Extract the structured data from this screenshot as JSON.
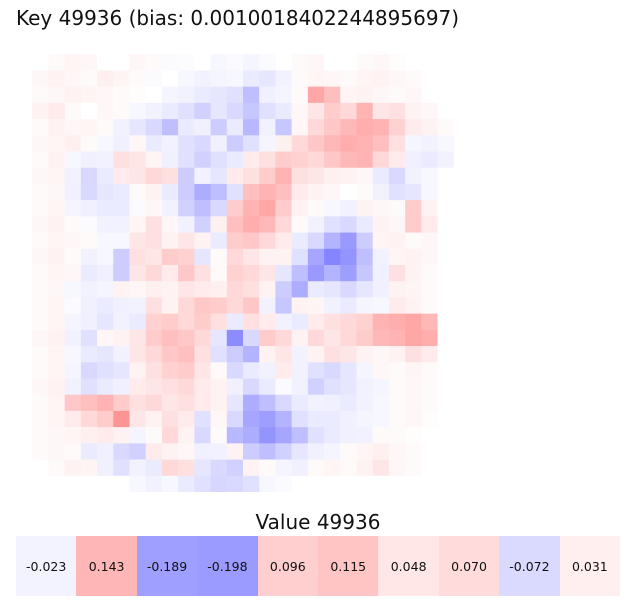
{
  "key_title": "Key 49936 (bias: 0.0010018402244895697)",
  "value_title": "Value 49936",
  "chart_data": [
    {
      "type": "heatmap",
      "title": "Key 49936 (bias: 0.0010018402244895697)",
      "colormap": "bwr",
      "color_low": "#0000ff",
      "color_mid": "#ffffff",
      "color_high": "#ff0000",
      "vmin": -1,
      "vmax": 1,
      "rows": 28,
      "cols": 28,
      "grid": false,
      "axes": "off",
      "values": [
        [
          0,
          0,
          0,
          0,
          0,
          0,
          0,
          0,
          0,
          0,
          0,
          0,
          0,
          0,
          0,
          0,
          0,
          0,
          0,
          0,
          0,
          0,
          0,
          0,
          0,
          0,
          0,
          0
        ],
        [
          0,
          0,
          0.02,
          0.04,
          0.03,
          0,
          0,
          0.03,
          0.02,
          -0.02,
          -0.01,
          0,
          -0.03,
          -0.02,
          -0.04,
          -0.02,
          0,
          0.02,
          0.03,
          0,
          0,
          0.02,
          0.03,
          0.01,
          0,
          0,
          0,
          0
        ],
        [
          0,
          0.03,
          0.05,
          0.03,
          0.02,
          0.06,
          0.04,
          0.02,
          -0.02,
          0,
          -0.03,
          -0.05,
          -0.04,
          -0.03,
          -0.08,
          -0.1,
          -0.05,
          0.02,
          0.04,
          0.03,
          0.02,
          0.04,
          0.05,
          0.03,
          0.02,
          0,
          0,
          0
        ],
        [
          0,
          0.02,
          0.03,
          0.05,
          0.04,
          0.03,
          0.02,
          0.01,
          0,
          -0.04,
          -0.05,
          -0.08,
          -0.1,
          -0.12,
          -0.25,
          -0.06,
          -0.04,
          0.02,
          0.35,
          0.25,
          0.04,
          0.05,
          0.03,
          0.02,
          0.03,
          0,
          0,
          0
        ],
        [
          0,
          0.05,
          0.08,
          0.02,
          0,
          0.03,
          0.02,
          -0.03,
          -0.05,
          -0.08,
          -0.12,
          -0.18,
          -0.1,
          -0.15,
          -0.22,
          -0.12,
          -0.08,
          0.03,
          0.1,
          0.2,
          0.15,
          0.3,
          0.1,
          0.12,
          0.05,
          0.03,
          0,
          0
        ],
        [
          0,
          0.02,
          0.05,
          0.03,
          0.04,
          0.02,
          -0.05,
          -0.1,
          -0.15,
          -0.25,
          -0.08,
          -0.06,
          -0.2,
          -0.08,
          -0.28,
          -0.05,
          -0.22,
          0.03,
          0.15,
          0.22,
          0.28,
          0.32,
          0.3,
          0.18,
          0.08,
          0.05,
          0.02,
          0
        ],
        [
          0,
          0.03,
          0.04,
          0.06,
          0.02,
          -0.03,
          -0.06,
          0.03,
          -0.08,
          -0.05,
          -0.12,
          -0.15,
          -0.06,
          -0.2,
          -0.12,
          -0.04,
          0.06,
          0.15,
          0.22,
          0.28,
          0.32,
          0.3,
          0.25,
          0.12,
          -0.04,
          -0.05,
          -0.03,
          0
        ],
        [
          0,
          0.02,
          0.05,
          -0.03,
          -0.06,
          -0.05,
          0.12,
          0.1,
          0.04,
          -0.06,
          -0.12,
          -0.18,
          -0.12,
          -0.08,
          0.08,
          0.12,
          0.2,
          0.18,
          0.15,
          0.22,
          0.28,
          0.3,
          0.15,
          0.08,
          -0.06,
          -0.08,
          -0.05,
          0
        ],
        [
          0,
          0.03,
          0.04,
          -0.05,
          -0.15,
          -0.08,
          0.08,
          0.1,
          0.15,
          0.12,
          -0.2,
          -0.05,
          -0.1,
          0.08,
          0.12,
          0.2,
          0.3,
          0.12,
          0.1,
          0.06,
          0.05,
          0.03,
          -0.08,
          -0.15,
          -0.05,
          -0.03,
          0,
          0
        ],
        [
          0,
          0.02,
          0.03,
          -0.06,
          -0.15,
          -0.1,
          -0.08,
          0.02,
          0.05,
          -0.08,
          -0.2,
          -0.32,
          -0.25,
          -0.12,
          0.25,
          0.3,
          0.25,
          0.08,
          0.05,
          0.03,
          0,
          0.02,
          -0.05,
          -0.12,
          -0.1,
          -0.03,
          0,
          0
        ],
        [
          0,
          0.02,
          0.04,
          -0.04,
          -0.06,
          -0.08,
          -0.08,
          -0.02,
          0.03,
          -0.05,
          -0.18,
          -0.25,
          -0.15,
          0.2,
          0.3,
          0.35,
          0.2,
          0.05,
          0.02,
          -0.03,
          -0.05,
          0.05,
          0.03,
          0.02,
          0.2,
          0.05,
          0,
          0
        ],
        [
          0,
          0.03,
          0.05,
          0.02,
          -0.02,
          -0.05,
          -0.05,
          0.04,
          0.12,
          0.03,
          -0.05,
          -0.18,
          0.06,
          0.25,
          0.32,
          0.28,
          0.15,
          0.02,
          -0.05,
          -0.12,
          -0.15,
          -0.08,
          0.05,
          0.03,
          0.2,
          0.08,
          0,
          0
        ],
        [
          0,
          0.02,
          0.04,
          0.03,
          0.02,
          -0.03,
          -0.03,
          0.1,
          0.12,
          0.05,
          0.1,
          0.05,
          -0.08,
          0.2,
          0.22,
          0.15,
          0.08,
          -0.08,
          -0.15,
          -0.3,
          -0.4,
          -0.2,
          0.04,
          0.05,
          0.02,
          0.03,
          0,
          0
        ],
        [
          0,
          0.03,
          0.05,
          0.02,
          -0.05,
          -0.03,
          -0.2,
          0.12,
          0.1,
          0.2,
          0.18,
          -0.1,
          0.02,
          0.15,
          0.1,
          0.05,
          0.05,
          -0.12,
          -0.35,
          -0.48,
          -0.42,
          -0.25,
          -0.05,
          0.04,
          0.05,
          0.03,
          0,
          0
        ],
        [
          0,
          0.02,
          0.04,
          0.03,
          -0.08,
          -0.06,
          -0.2,
          0.1,
          0.15,
          0.08,
          0.22,
          0.12,
          0.02,
          0.18,
          0.15,
          0.1,
          -0.1,
          -0.25,
          -0.4,
          -0.3,
          -0.38,
          -0.22,
          -0.06,
          0.12,
          0.05,
          0.02,
          0,
          0
        ],
        [
          0,
          0.02,
          0.03,
          -0.03,
          -0.05,
          -0.04,
          0.05,
          0.03,
          0.06,
          0.05,
          0.1,
          0.08,
          0.06,
          0.15,
          0.12,
          0.05,
          -0.2,
          -0.32,
          -0.08,
          -0.1,
          -0.15,
          -0.1,
          -0.06,
          0.05,
          0.04,
          0.02,
          0,
          0
        ],
        [
          0,
          0.02,
          0.04,
          -0.02,
          -0.06,
          -0.08,
          -0.06,
          -0.05,
          0.12,
          0.05,
          0.15,
          0.22,
          0.2,
          0.15,
          0.22,
          -0.05,
          -0.22,
          0.05,
          0.04,
          -0.05,
          -0.08,
          -0.04,
          -0.03,
          0.08,
          0.05,
          0.02,
          0,
          0
        ],
        [
          0,
          0.02,
          0.04,
          -0.04,
          -0.06,
          -0.1,
          -0.05,
          -0.08,
          0.18,
          0.2,
          0.15,
          0.2,
          0.12,
          -0.08,
          0.12,
          0.08,
          -0.05,
          -0.08,
          0.08,
          0.12,
          0.15,
          0.18,
          0.3,
          0.32,
          0.35,
          0.28,
          0,
          0
        ],
        [
          0,
          0.03,
          0.05,
          -0.05,
          -0.12,
          0.03,
          0.05,
          0.1,
          0.2,
          0.25,
          0.22,
          0.15,
          -0.1,
          -0.45,
          -0.15,
          0.2,
          0.15,
          0.05,
          0.15,
          0.1,
          0.15,
          0.2,
          0.28,
          0.3,
          0.35,
          0.32,
          0,
          0
        ],
        [
          0,
          0.02,
          0.04,
          -0.03,
          -0.08,
          -0.1,
          -0.05,
          0.1,
          0.15,
          0.22,
          0.25,
          0.12,
          -0.12,
          -0.2,
          -0.3,
          0.05,
          0.1,
          -0.05,
          0.05,
          0.12,
          0.1,
          0.05,
          0.03,
          0.05,
          0.12,
          0.08,
          0,
          0
        ],
        [
          0,
          0.02,
          0.04,
          -0.04,
          -0.15,
          -0.12,
          -0.1,
          0.05,
          0.12,
          0.18,
          0.2,
          0.1,
          0.02,
          -0.15,
          -0.08,
          -0.05,
          0.08,
          -0.05,
          -0.12,
          -0.15,
          -0.1,
          -0.04,
          0.03,
          0.02,
          0.04,
          0.02,
          0,
          0
        ],
        [
          0,
          0.03,
          0.05,
          -0.05,
          -0.12,
          -0.08,
          -0.06,
          0.08,
          0.1,
          0.12,
          0.15,
          0.08,
          0.05,
          -0.06,
          -0.15,
          -0.08,
          -0.02,
          -0.05,
          -0.18,
          -0.12,
          -0.1,
          -0.05,
          -0.04,
          0.02,
          0.03,
          0.02,
          0,
          0
        ],
        [
          0,
          0.02,
          0.04,
          0.22,
          0.25,
          0.3,
          0.2,
          0.12,
          0.15,
          0.1,
          0.12,
          0.08,
          0.05,
          -0.1,
          -0.32,
          -0.25,
          -0.15,
          -0.08,
          -0.05,
          -0.06,
          -0.08,
          -0.05,
          -0.03,
          0.02,
          0.03,
          0.02,
          0,
          0
        ],
        [
          0,
          0.02,
          0.04,
          0.08,
          0.15,
          0.2,
          0.42,
          0.1,
          0.05,
          0.12,
          0.08,
          -0.12,
          0.03,
          -0.15,
          -0.35,
          -0.38,
          -0.3,
          -0.12,
          -0.08,
          -0.08,
          -0.06,
          -0.04,
          -0.03,
          0.02,
          0.03,
          0.01,
          0,
          0
        ],
        [
          0,
          0.02,
          0.03,
          0.04,
          0.06,
          0.08,
          0.05,
          -0.04,
          0.02,
          0.15,
          0.05,
          -0.15,
          0.02,
          -0.28,
          -0.32,
          -0.42,
          -0.35,
          -0.25,
          -0.12,
          -0.08,
          -0.06,
          -0.05,
          0.02,
          0.02,
          0.01,
          0,
          0,
          0
        ],
        [
          0,
          0.02,
          0.03,
          0.02,
          -0.08,
          -0.06,
          -0.15,
          -0.18,
          0.08,
          0.05,
          0.03,
          -0.06,
          -0.05,
          0.05,
          -0.2,
          -0.25,
          -0.18,
          -0.1,
          -0.06,
          -0.04,
          0.02,
          0.04,
          0.06,
          0.03,
          0.02,
          0,
          0,
          0
        ],
        [
          0,
          0,
          0.02,
          0.05,
          0.04,
          -0.06,
          -0.12,
          -0.05,
          -0.08,
          0.15,
          0.12,
          -0.1,
          -0.15,
          -0.18,
          0.05,
          0.02,
          -0.04,
          -0.06,
          0.02,
          0.04,
          0.02,
          0.05,
          0.1,
          0.03,
          0.02,
          0,
          0,
          0
        ],
        [
          0,
          0,
          0,
          0,
          0,
          0,
          0,
          -0.03,
          -0.05,
          -0.03,
          -0.08,
          -0.12,
          -0.16,
          -0.15,
          -0.12,
          -0.03,
          -0.02,
          0,
          0,
          0,
          0,
          0,
          0,
          0,
          0,
          0,
          0,
          0
        ]
      ]
    },
    {
      "type": "heatmap",
      "title": "Value 49936",
      "colormap": "bwr",
      "vmin": -0.5,
      "vmax": 0.5,
      "rows": 1,
      "cols": 10,
      "values": [
        -0.023,
        0.143,
        -0.189,
        -0.198,
        0.096,
        0.115,
        0.048,
        0.07,
        -0.072,
        0.031
      ],
      "labels": [
        "-0.023",
        "0.143",
        "-0.189",
        "-0.198",
        "0.096",
        "0.115",
        "0.048",
        "0.070",
        "-0.072",
        "0.031"
      ]
    }
  ]
}
